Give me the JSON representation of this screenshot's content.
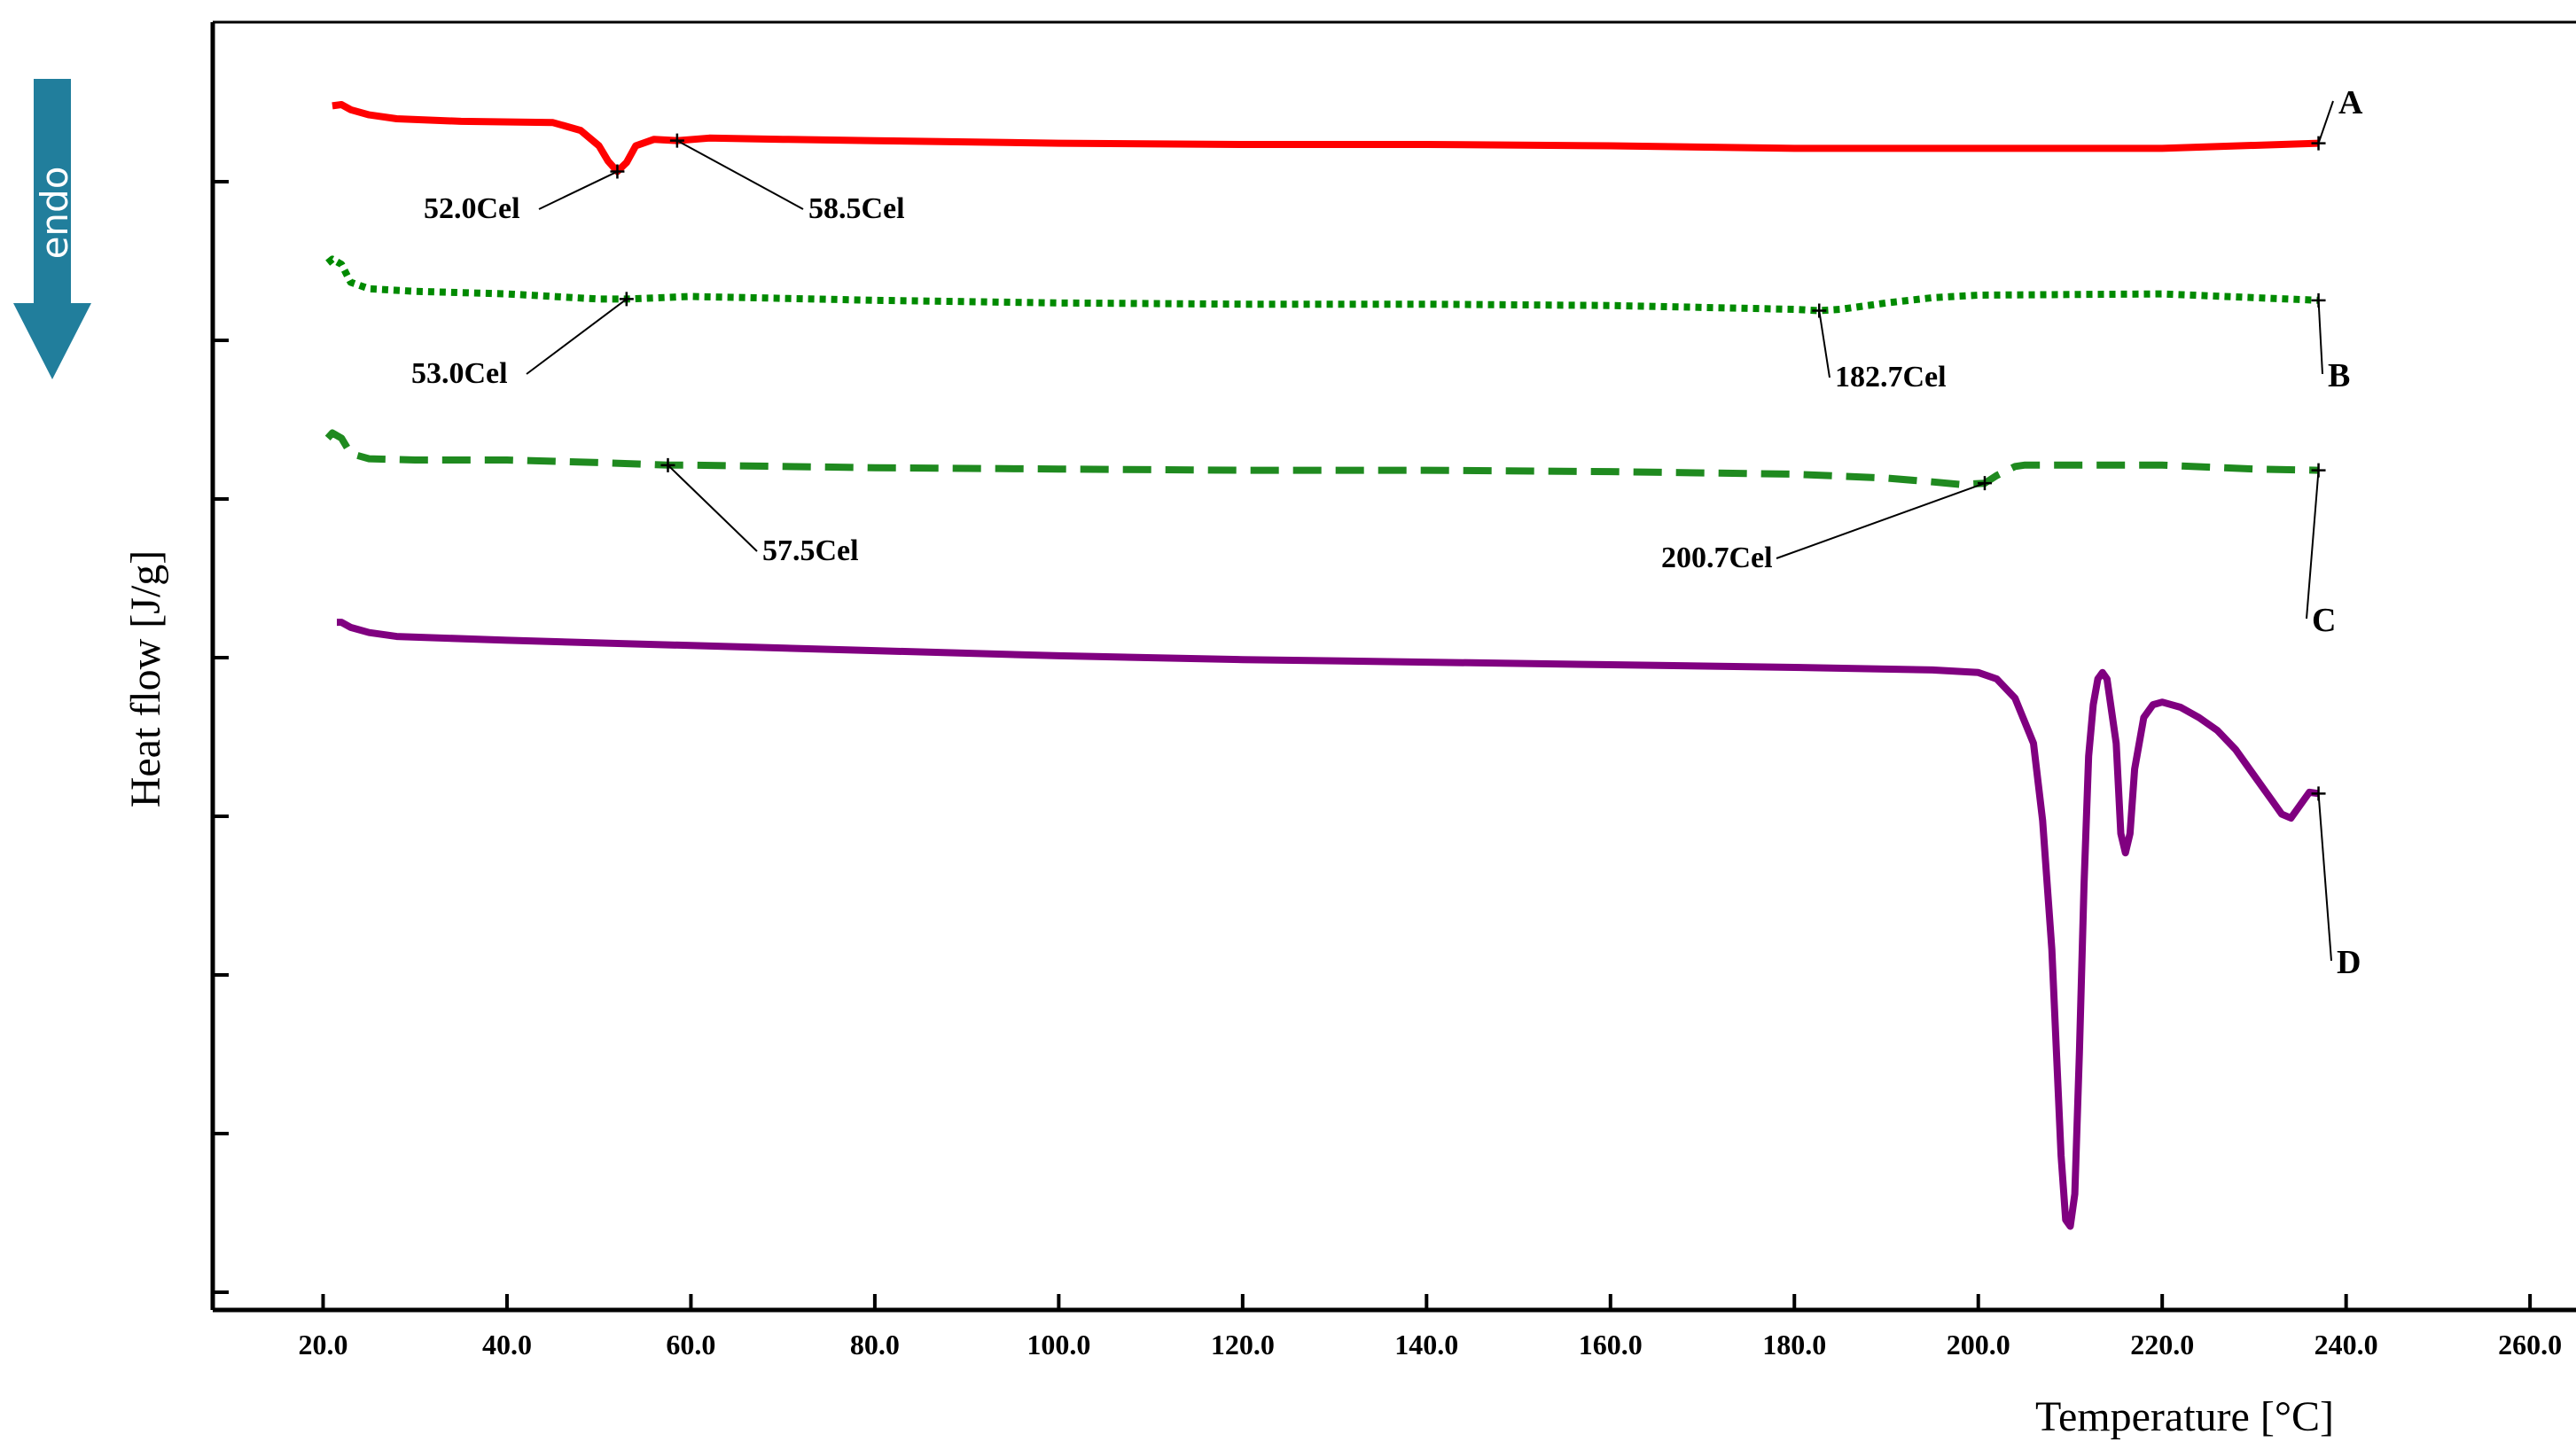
{
  "endo_indicator": {
    "label": "endo",
    "color": "#217e9c"
  },
  "chart_data": {
    "type": "line",
    "xlabel": "Temperature [°C]",
    "ylabel": "Heat flow [J/g]",
    "xlim": [
      8.0,
      265.0
    ],
    "ylim": [
      0,
      100
    ],
    "x_ticks": [
      "20.0",
      "40.0",
      "60.0",
      "80.0",
      "100.0",
      "120.0",
      "140.0",
      "160.0",
      "180.0",
      "200.0",
      "220.0",
      "240.0",
      "260.0"
    ],
    "y_tick_count": 8,
    "y_tick_labels_shown": false,
    "grid": false,
    "series": [
      {
        "name": "A",
        "color": "#ff0000",
        "style": "solid",
        "x": [
          21,
          22,
          23,
          25,
          28,
          35,
          45,
          48,
          50,
          51,
          52,
          53,
          54,
          56,
          58.5,
          62,
          70,
          80,
          100,
          120,
          140,
          160,
          180,
          200,
          220,
          237
        ],
        "y": [
          93.5,
          93.6,
          93.2,
          92.8,
          92.5,
          92.3,
          92.2,
          91.6,
          90.4,
          89.2,
          88.4,
          89.1,
          90.4,
          90.9,
          90.8,
          91.0,
          90.9,
          90.8,
          90.6,
          90.5,
          90.5,
          90.4,
          90.2,
          90.2,
          90.2,
          90.6
        ]
      },
      {
        "name": "B",
        "color": "#008a00",
        "style": "dotted",
        "x": [
          20.5,
          21,
          22,
          23,
          25,
          30,
          40,
          50,
          53,
          60,
          80,
          100,
          120,
          140,
          160,
          180,
          182.7,
          185,
          190,
          195,
          200,
          220,
          237
        ],
        "y": [
          81.3,
          81.6,
          81.2,
          79.8,
          79.3,
          79.1,
          78.9,
          78.5,
          78.5,
          78.7,
          78.4,
          78.2,
          78.1,
          78.1,
          78.0,
          77.7,
          77.6,
          77.7,
          78.2,
          78.6,
          78.8,
          78.9,
          78.4
        ]
      },
      {
        "name": "C",
        "color": "#1f8a1f",
        "style": "dashed",
        "x": [
          20.5,
          21,
          22,
          23,
          25,
          30,
          40,
          50,
          57.5,
          60,
          80,
          100,
          120,
          140,
          160,
          180,
          190,
          195,
          198,
          200.7,
          202,
          204,
          205,
          210,
          220,
          230,
          237
        ],
        "y": [
          67.7,
          68.1,
          67.7,
          66.5,
          66.1,
          66.0,
          66.0,
          65.8,
          65.6,
          65.6,
          65.4,
          65.3,
          65.2,
          65.2,
          65.1,
          64.9,
          64.6,
          64.3,
          64.1,
          64.2,
          64.8,
          65.5,
          65.6,
          65.6,
          65.6,
          65.3,
          65.2
        ]
      },
      {
        "name": "D",
        "color": "#800080",
        "style": "solid",
        "x": [
          21.5,
          22,
          23,
          25,
          28,
          40,
          60,
          80,
          100,
          120,
          140,
          160,
          180,
          195,
          200,
          202,
          204,
          206,
          207,
          208,
          208.5,
          209,
          209.5,
          210,
          210.5,
          211,
          211.5,
          212,
          212.5,
          213,
          213.5,
          214,
          215,
          215.5,
          216,
          216.5,
          217,
          218,
          219,
          220,
          222,
          224,
          226,
          228,
          230,
          232,
          233,
          234,
          235,
          236,
          237
        ],
        "y": [
          53.4,
          53.4,
          53.0,
          52.6,
          52.3,
          52.0,
          51.6,
          51.2,
          50.8,
          50.5,
          50.3,
          50.1,
          49.9,
          49.7,
          49.5,
          49.0,
          47.5,
          44.0,
          38.0,
          28.0,
          20.0,
          12.0,
          7.0,
          6.5,
          9.0,
          20.0,
          33.0,
          43.0,
          47.0,
          49.0,
          49.5,
          49.0,
          44.0,
          37.0,
          35.5,
          37.0,
          42.0,
          46.0,
          47.0,
          47.2,
          46.8,
          46.0,
          45.0,
          43.5,
          41.5,
          39.5,
          38.5,
          38.2,
          39.2,
          40.2,
          40.1
        ]
      }
    ],
    "annotations": [
      {
        "label": "52.0Cel",
        "series": "A",
        "x": 52.0
      },
      {
        "label": "58.5Cel",
        "series": "A",
        "x": 58.5
      },
      {
        "label": "53.0Cel",
        "series": "B",
        "x": 53.0
      },
      {
        "label": "182.7Cel",
        "series": "B",
        "x": 182.7
      },
      {
        "label": "57.5Cel",
        "series": "C",
        "x": 57.5
      },
      {
        "label": "200.7Cel",
        "series": "C",
        "x": 200.7
      }
    ],
    "series_labels": [
      "A",
      "B",
      "C",
      "D"
    ]
  }
}
